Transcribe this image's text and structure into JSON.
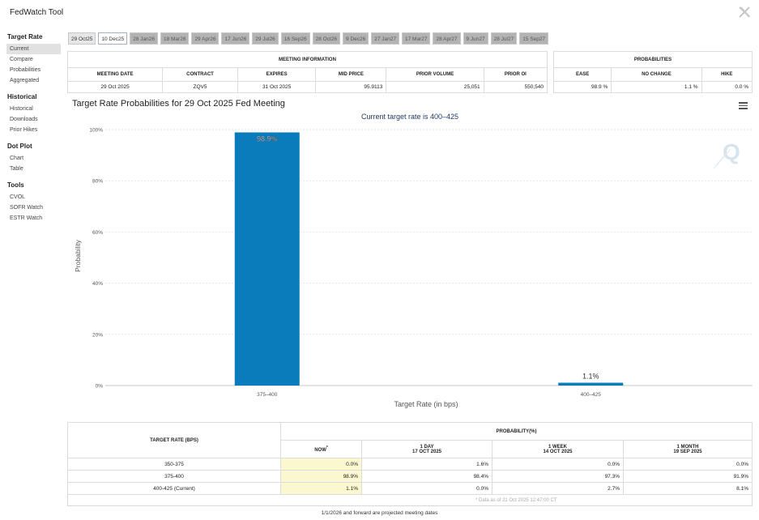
{
  "window": {
    "title": "FedWatch Tool"
  },
  "sidebar": {
    "sections": [
      {
        "heading": "Target Rate",
        "items": [
          "Current",
          "Compare",
          "Probabilities",
          "Aggregated"
        ]
      },
      {
        "heading": "Historical",
        "items": [
          "Historical",
          "Downloads",
          "Prior Hikes"
        ]
      },
      {
        "heading": "Dot Plot",
        "items": [
          "Chart",
          "Table"
        ]
      },
      {
        "heading": "Tools",
        "items": [
          "CVOL",
          "SOFR Watch",
          "ESTR Watch"
        ]
      }
    ]
  },
  "tabs": [
    "29 Oct25",
    "10 Dec25",
    "28 Jan26",
    "18 Mar26",
    "29 Apr26",
    "17 Jun26",
    "29 Jul26",
    "16 Sep26",
    "28 Oct26",
    "9 Dec26",
    "27 Jan27",
    "17 Mar27",
    "28 Apr27",
    "9 Jun27",
    "28 Jul27",
    "15 Sep27"
  ],
  "meeting_info": {
    "title": "MEETING INFORMATION",
    "headers": [
      "MEETING DATE",
      "CONTRACT",
      "EXPIRES",
      "MID PRICE",
      "PRIOR VOLUME",
      "PRIOR OI"
    ],
    "values": [
      "29 Oct 2025",
      "ZQV5",
      "31 Oct 2025",
      "95.9113",
      "25,051",
      "550,540"
    ]
  },
  "probabilities": {
    "title": "PROBABILITIES",
    "headers": [
      "EASE",
      "NO CHANGE",
      "HIKE"
    ],
    "values": [
      "98.9 %",
      "1.1 %",
      "0.0 %"
    ]
  },
  "chart": {
    "title": "Target Rate Probabilities for 29 Oct 2025 Fed Meeting",
    "subtitle": "Current target rate is 400–425"
  },
  "chart_data": {
    "type": "bar",
    "categories": [
      "375–400",
      "400–425"
    ],
    "values": [
      98.9,
      1.1
    ],
    "data_labels": [
      "98.9%",
      "1.1%"
    ],
    "title": "Target Rate Probabilities for 29 Oct 2025 Fed Meeting",
    "subtitle": "Current target rate is 400–425",
    "xlabel": "Target Rate (in bps)",
    "ylabel": "Probability",
    "ylim": [
      0,
      100
    ],
    "yticks": [
      "0%",
      "20%",
      "40%",
      "60%",
      "80%",
      "100%"
    ],
    "grid": true,
    "bar_color": "#0a7cbc"
  },
  "bottom_table": {
    "target_rate_header": "TARGET RATE (BPS)",
    "probability_header": "PROBABILITY(%)",
    "columns": [
      {
        "label": "NOW",
        "date": ""
      },
      {
        "label": "1 DAY",
        "date": "17 OCT 2025"
      },
      {
        "label": "1 WEEK",
        "date": "14 OCT 2025"
      },
      {
        "label": "1 MONTH",
        "date": "19 SEP 2025"
      }
    ],
    "rows": [
      {
        "rate": "350-375",
        "values": [
          "0.0%",
          "1.6%",
          "0.0%",
          "0.0%"
        ]
      },
      {
        "rate": "375-400",
        "values": [
          "98.9%",
          "98.4%",
          "97.3%",
          "91.9%"
        ]
      },
      {
        "rate": "400-425 (Current)",
        "values": [
          "1.1%",
          "0.0%",
          "2.7%",
          "8.1%"
        ]
      }
    ],
    "note": "* Data as of 21 Oct 2025 12:47:00 CT"
  },
  "footer": "1/1/2026 and forward are projected meeting dates",
  "icons": {
    "close": "x-logo-icon",
    "menu": "hamburger-menu-icon",
    "watermark": "q-logo-icon"
  }
}
